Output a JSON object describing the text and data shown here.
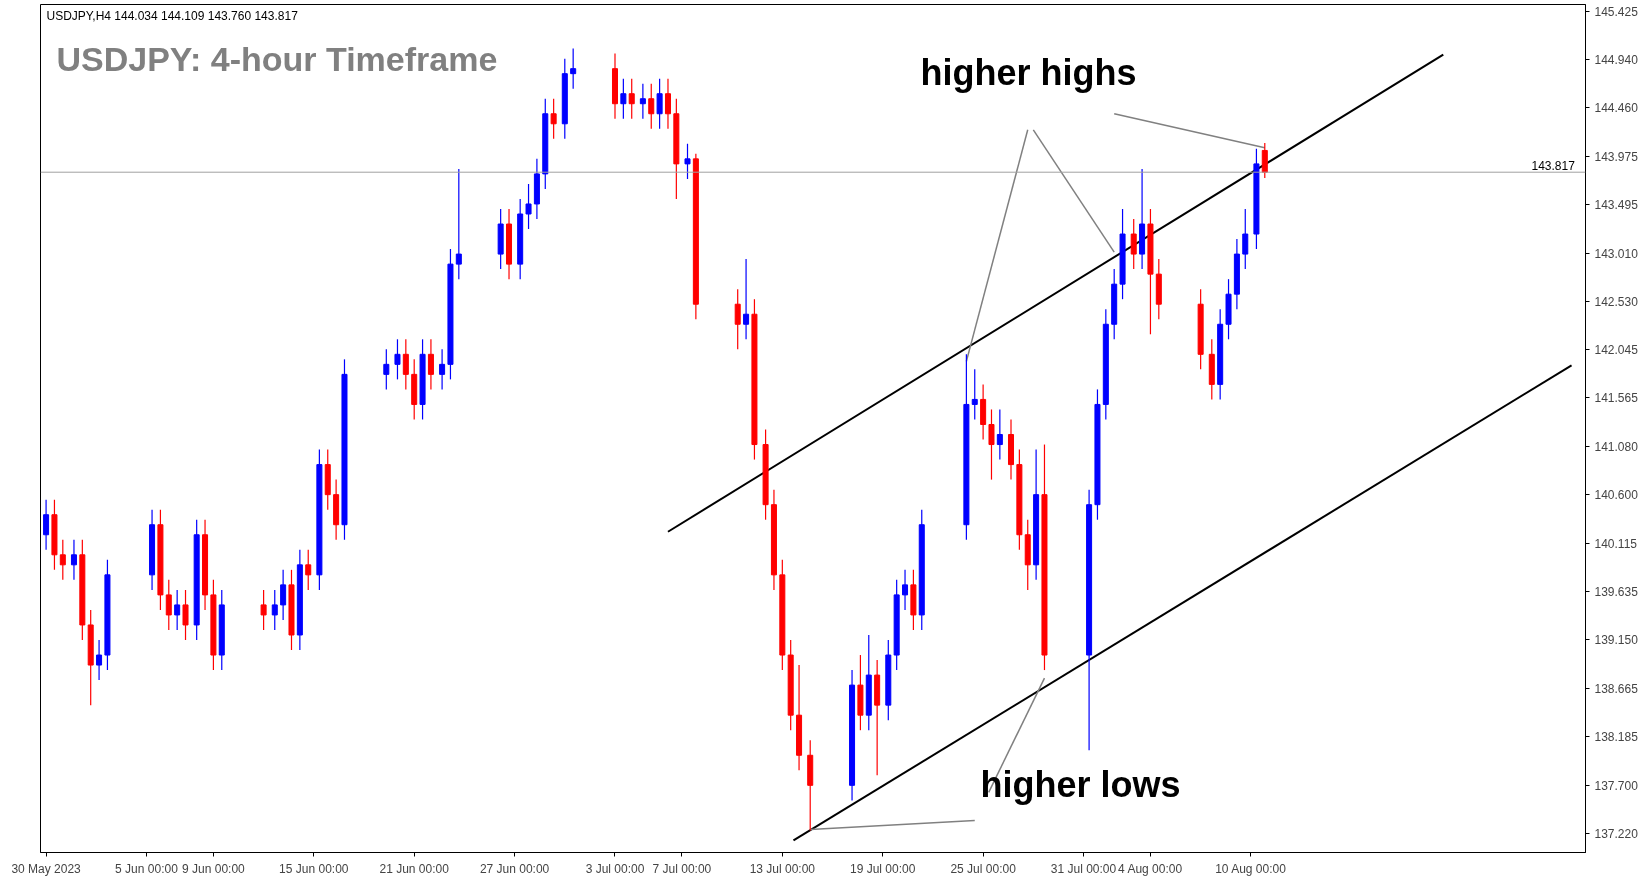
{
  "chart_data": {
    "type": "candlestick",
    "title": "USDJPY: 4-hour Timeframe",
    "annotations": [
      "USDJPY,H4  144.034 144.109 143.760 143.817",
      "higher highs",
      "higher lows"
    ],
    "x": [
      "2023-05-30T00:00",
      "2023-05-30T12:00",
      "2023-05-31T00:00",
      "2023-05-31T16:00",
      "2023-06-01T04:00",
      "2023-06-01T16:00",
      "2023-06-02T04:00",
      "2023-06-02T16:00",
      "2023-06-05T08:00",
      "2023-06-05T20:00",
      "2023-06-06T08:00",
      "2023-06-06T20:00",
      "2023-06-07T08:00",
      "2023-06-08T00:00",
      "2023-06-08T12:00",
      "2023-06-09T00:00",
      "2023-06-09T12:00",
      "2023-06-12T00:00",
      "2023-06-12T16:00",
      "2023-06-13T04:00",
      "2023-06-13T16:00",
      "2023-06-14T04:00",
      "2023-06-14T16:00",
      "2023-06-15T08:00",
      "2023-06-15T20:00",
      "2023-06-16T08:00",
      "2023-06-16T20:00",
      "2023-06-19T08:00",
      "2023-06-20T00:00",
      "2023-06-20T12:00",
      "2023-06-21T00:00",
      "2023-06-21T12:00",
      "2023-06-22T00:00",
      "2023-06-22T16:00",
      "2023-06-23T04:00",
      "2023-06-23T16:00",
      "2023-06-26T04:00",
      "2023-06-26T16:00",
      "2023-06-27T08:00",
      "2023-06-27T20:00",
      "2023-06-28T08:00",
      "2023-06-28T20:00",
      "2023-06-29T08:00",
      "2023-06-30T00:00",
      "2023-06-30T12:00",
      "2023-07-03T00:00",
      "2023-07-03T12:00",
      "2023-07-04T00:00",
      "2023-07-04T16:00",
      "2023-07-05T04:00",
      "2023-07-05T16:00",
      "2023-07-06T04:00",
      "2023-07-06T16:00",
      "2023-07-07T08:00",
      "2023-07-07T20:00",
      "2023-07-10T08:00",
      "2023-07-10T20:00",
      "2023-07-11T08:00",
      "2023-07-12T00:00",
      "2023-07-12T12:00",
      "2023-07-13T00:00",
      "2023-07-13T12:00",
      "2023-07-14T00:00",
      "2023-07-14T16:00",
      "2023-07-17T04:00",
      "2023-07-17T16:00",
      "2023-07-18T04:00",
      "2023-07-18T16:00",
      "2023-07-19T08:00",
      "2023-07-19T20:00",
      "2023-07-20T08:00",
      "2023-07-20T20:00",
      "2023-07-21T08:00",
      "2023-07-24T00:00",
      "2023-07-24T12:00",
      "2023-07-25T00:00",
      "2023-07-25T12:00",
      "2023-07-26T00:00",
      "2023-07-26T16:00",
      "2023-07-27T04:00",
      "2023-07-27T16:00",
      "2023-07-28T04:00",
      "2023-07-28T16:00",
      "2023-07-31T08:00",
      "2023-07-31T20:00",
      "2023-08-01T08:00",
      "2023-08-01T20:00",
      "2023-08-02T08:00",
      "2023-08-03T00:00",
      "2023-08-03T12:00",
      "2023-08-04T00:00",
      "2023-08-04T12:00",
      "2023-08-07T00:00",
      "2023-08-07T16:00",
      "2023-08-08T04:00",
      "2023-08-08T16:00",
      "2023-08-09T04:00",
      "2023-08-09T16:00",
      "2023-08-10T08:00",
      "2023-08-10T20:00"
    ],
    "ohlc": [
      [
        140.2,
        140.55,
        140.05,
        140.4
      ],
      [
        140.4,
        140.55,
        139.85,
        140.0
      ],
      [
        140.0,
        140.15,
        139.75,
        139.9
      ],
      [
        139.9,
        140.15,
        139.75,
        140.0
      ],
      [
        140.0,
        140.15,
        139.15,
        139.3
      ],
      [
        139.3,
        139.45,
        138.5,
        138.9
      ],
      [
        138.9,
        139.15,
        138.75,
        139.0
      ],
      [
        139.0,
        139.95,
        138.85,
        139.8
      ],
      [
        139.8,
        140.45,
        139.65,
        140.3
      ],
      [
        140.3,
        140.45,
        139.45,
        139.6
      ],
      [
        139.6,
        139.75,
        139.25,
        139.4
      ],
      [
        139.4,
        139.65,
        139.25,
        139.5
      ],
      [
        139.5,
        139.65,
        139.15,
        139.3
      ],
      [
        139.3,
        140.35,
        139.15,
        140.2
      ],
      [
        140.2,
        140.35,
        139.45,
        139.6
      ],
      [
        139.6,
        139.75,
        138.85,
        139.0
      ],
      [
        139.0,
        139.65,
        138.85,
        139.5
      ],
      [
        139.5,
        139.65,
        139.25,
        139.4
      ],
      [
        139.4,
        139.65,
        139.25,
        139.5
      ],
      [
        139.5,
        139.85,
        139.35,
        139.7
      ],
      [
        139.7,
        139.85,
        139.05,
        139.2
      ],
      [
        139.2,
        140.05,
        139.05,
        139.9
      ],
      [
        139.9,
        140.05,
        139.65,
        139.8
      ],
      [
        139.8,
        141.05,
        139.65,
        140.9
      ],
      [
        140.9,
        141.05,
        140.45,
        140.6
      ],
      [
        140.6,
        140.75,
        140.15,
        140.3
      ],
      [
        140.3,
        141.95,
        140.15,
        141.8
      ],
      [
        141.8,
        142.05,
        141.65,
        141.9
      ],
      [
        141.9,
        142.15,
        141.75,
        142.0
      ],
      [
        142.0,
        142.15,
        141.65,
        141.8
      ],
      [
        141.8,
        141.95,
        141.35,
        141.5
      ],
      [
        141.5,
        142.15,
        141.35,
        142.0
      ],
      [
        142.0,
        142.15,
        141.65,
        141.8
      ],
      [
        141.8,
        142.05,
        141.65,
        141.9
      ],
      [
        141.9,
        143.05,
        141.75,
        142.9
      ],
      [
        142.9,
        143.85,
        142.75,
        143.0
      ],
      [
        143.0,
        143.45,
        142.85,
        143.3
      ],
      [
        143.3,
        143.45,
        142.75,
        142.9
      ],
      [
        142.9,
        143.55,
        142.75,
        143.4
      ],
      [
        143.4,
        143.7,
        143.25,
        143.5
      ],
      [
        143.5,
        143.95,
        143.35,
        143.8
      ],
      [
        143.8,
        144.55,
        143.65,
        144.4
      ],
      [
        144.4,
        144.55,
        144.15,
        144.3
      ],
      [
        144.3,
        144.95,
        144.15,
        144.8
      ],
      [
        144.8,
        145.05,
        144.65,
        144.85
      ],
      [
        144.85,
        145.0,
        144.35,
        144.5
      ],
      [
        144.5,
        144.75,
        144.35,
        144.6
      ],
      [
        144.6,
        144.75,
        144.35,
        144.5
      ],
      [
        144.5,
        144.7,
        144.35,
        144.55
      ],
      [
        144.55,
        144.7,
        144.25,
        144.4
      ],
      [
        144.4,
        144.75,
        144.25,
        144.6
      ],
      [
        144.6,
        144.75,
        144.25,
        144.4
      ],
      [
        144.4,
        144.55,
        143.55,
        143.9
      ],
      [
        143.9,
        144.1,
        143.75,
        143.95
      ],
      [
        143.95,
        144.0,
        142.35,
        142.5
      ],
      [
        142.5,
        142.65,
        142.05,
        142.3
      ],
      [
        142.3,
        142.95,
        142.15,
        142.4
      ],
      [
        142.4,
        142.55,
        140.95,
        141.1
      ],
      [
        141.1,
        141.25,
        140.35,
        140.5
      ],
      [
        140.5,
        140.65,
        139.65,
        139.8
      ],
      [
        139.8,
        139.95,
        138.85,
        139.0
      ],
      [
        139.0,
        139.15,
        138.25,
        138.4
      ],
      [
        138.4,
        138.9,
        137.85,
        138.0
      ],
      [
        138.0,
        138.15,
        137.25,
        137.7
      ],
      [
        137.7,
        138.85,
        137.55,
        138.7
      ],
      [
        138.7,
        139.0,
        138.25,
        138.4
      ],
      [
        138.4,
        139.2,
        138.25,
        138.8
      ],
      [
        138.8,
        138.95,
        137.8,
        138.5
      ],
      [
        138.5,
        139.15,
        138.35,
        139.0
      ],
      [
        139.0,
        139.75,
        138.85,
        139.6
      ],
      [
        139.6,
        139.85,
        139.45,
        139.7
      ],
      [
        139.7,
        139.85,
        139.25,
        139.4
      ],
      [
        139.4,
        140.45,
        139.25,
        140.3
      ],
      [
        140.3,
        142.0,
        140.15,
        141.5
      ],
      [
        141.5,
        141.85,
        141.35,
        141.55
      ],
      [
        141.55,
        141.7,
        141.15,
        141.3
      ],
      [
        141.3,
        141.45,
        140.75,
        141.1
      ],
      [
        141.1,
        141.45,
        140.95,
        141.2
      ],
      [
        141.2,
        141.35,
        140.75,
        140.9
      ],
      [
        140.9,
        141.05,
        140.05,
        140.2
      ],
      [
        140.2,
        140.35,
        139.65,
        139.9
      ],
      [
        139.9,
        141.05,
        139.75,
        140.6
      ],
      [
        140.6,
        141.1,
        138.85,
        139.0
      ],
      [
        139.0,
        140.65,
        138.05,
        140.5
      ],
      [
        140.5,
        141.65,
        140.35,
        141.5
      ],
      [
        141.5,
        142.45,
        141.35,
        142.3
      ],
      [
        142.3,
        142.85,
        142.15,
        142.7
      ],
      [
        142.7,
        143.45,
        142.55,
        143.2
      ],
      [
        143.2,
        143.35,
        142.85,
        143.0
      ],
      [
        143.0,
        143.85,
        142.85,
        143.3
      ],
      [
        143.3,
        143.45,
        142.2,
        142.8
      ],
      [
        142.8,
        142.95,
        142.35,
        142.5
      ],
      [
        142.5,
        142.65,
        141.85,
        142.0
      ],
      [
        142.0,
        142.15,
        141.55,
        141.7
      ],
      [
        141.7,
        142.45,
        141.55,
        142.3
      ],
      [
        142.3,
        142.75,
        142.15,
        142.6
      ],
      [
        142.6,
        143.15,
        142.45,
        143.0
      ],
      [
        143.0,
        143.45,
        142.85,
        143.2
      ],
      [
        143.2,
        144.05,
        143.05,
        143.9
      ],
      [
        144.034,
        144.109,
        143.76,
        143.817
      ]
    ],
    "colors": [
      "#0000ff",
      "#ff0000",
      "#ff0000",
      "#0000ff",
      "#ff0000",
      "#ff0000",
      "#0000ff",
      "#0000ff",
      "#0000ff",
      "#ff0000",
      "#ff0000",
      "#0000ff",
      "#ff0000",
      "#0000ff",
      "#ff0000",
      "#ff0000",
      "#0000ff",
      "#ff0000",
      "#0000ff",
      "#0000ff",
      "#ff0000",
      "#0000ff",
      "#ff0000",
      "#0000ff",
      "#ff0000",
      "#ff0000",
      "#0000ff",
      "#0000ff",
      "#0000ff",
      "#ff0000",
      "#ff0000",
      "#0000ff",
      "#ff0000",
      "#0000ff",
      "#0000ff",
      "#0000ff",
      "#0000ff",
      "#ff0000",
      "#0000ff",
      "#0000ff",
      "#0000ff",
      "#0000ff",
      "#ff0000",
      "#0000ff",
      "#0000ff",
      "#ff0000",
      "#0000ff",
      "#ff0000",
      "#0000ff",
      "#ff0000",
      "#0000ff",
      "#ff0000",
      "#ff0000",
      "#0000ff",
      "#ff0000",
      "#ff0000",
      "#0000ff",
      "#ff0000",
      "#ff0000",
      "#ff0000",
      "#ff0000",
      "#ff0000",
      "#ff0000",
      "#ff0000",
      "#0000ff",
      "#ff0000",
      "#0000ff",
      "#ff0000",
      "#0000ff",
      "#0000ff",
      "#0000ff",
      "#ff0000",
      "#0000ff",
      "#0000ff",
      "#0000ff",
      "#ff0000",
      "#ff0000",
      "#0000ff",
      "#ff0000",
      "#ff0000",
      "#ff0000",
      "#0000ff",
      "#ff0000",
      "#0000ff",
      "#0000ff",
      "#0000ff",
      "#0000ff",
      "#0000ff",
      "#ff0000",
      "#0000ff",
      "#ff0000",
      "#ff0000",
      "#ff0000",
      "#ff0000",
      "#0000ff",
      "#0000ff",
      "#0000ff",
      "#0000ff",
      "#0000ff",
      "#ff0000"
    ],
    "series": [
      {
        "type": "line",
        "color": "#000000",
        "x": [
          "2023-07-06T04:00",
          "2023-08-21T12:00"
        ],
        "values": [
          140.23,
          144.99
        ]
      },
      {
        "type": "line",
        "color": "#000000",
        "x": [
          "2023-07-13T16:00",
          "2023-08-29T04:00"
        ],
        "values": [
          137.15,
          141.89
        ]
      },
      {
        "type": "line",
        "color": "#808080",
        "x": [
          "2023-07-27T16:00",
          "2023-07-24T00:00"
        ],
        "values": [
          144.24,
          141.93
        ]
      },
      {
        "type": "line",
        "color": "#808080",
        "x": [
          "2023-07-28T00:00",
          "2023-08-01T20:00"
        ],
        "values": [
          144.24,
          143.02
        ]
      },
      {
        "type": "line",
        "color": "#808080",
        "x": [
          "2023-08-01T20:00",
          "2023-08-10T20:00"
        ],
        "values": [
          144.4,
          144.06
        ]
      },
      {
        "type": "line",
        "color": "#808080",
        "x": [
          "2023-07-24T12:00",
          "2023-07-14T16:00"
        ],
        "values": [
          137.35,
          137.26
        ]
      },
      {
        "type": "line",
        "color": "#808080",
        "x": [
          "2023-07-25T08:00",
          "2023-07-28T16:00"
        ],
        "values": [
          137.63,
          138.77
        ]
      }
    ],
    "ref_lines": [
      {
        "axis": "y",
        "value": 143.817,
        "label": "143.817",
        "color": "#a0a0a0"
      }
    ],
    "xlim": [
      "2023-05-29T16:00",
      "2023-08-30T00:00"
    ],
    "ylim": [
      137.03,
      145.49
    ],
    "xticks": [
      {
        "value": "2023-05-30T00:00",
        "label": "30 May 2023"
      },
      {
        "value": "2023-06-05T00:00",
        "label": "5 Jun 00:00"
      },
      {
        "value": "2023-06-09T00:00",
        "label": "9 Jun 00:00"
      },
      {
        "value": "2023-06-15T00:00",
        "label": "15 Jun 00:00"
      },
      {
        "value": "2023-06-21T00:00",
        "label": "21 Jun 00:00"
      },
      {
        "value": "2023-06-27T00:00",
        "label": "27 Jun 00:00"
      },
      {
        "value": "2023-07-03T00:00",
        "label": "3 Jul 00:00"
      },
      {
        "value": "2023-07-07T00:00",
        "label": "7 Jul 00:00"
      },
      {
        "value": "2023-07-13T00:00",
        "label": "13 Jul 00:00"
      },
      {
        "value": "2023-07-19T00:00",
        "label": "19 Jul 00:00"
      },
      {
        "value": "2023-07-25T00:00",
        "label": "25 Jul 00:00"
      },
      {
        "value": "2023-07-31T00:00",
        "label": "31 Jul 00:00"
      },
      {
        "value": "2023-08-04T00:00",
        "label": "4 Aug 00:00"
      },
      {
        "value": "2023-08-10T00:00",
        "label": "10 Aug 00:00"
      }
    ],
    "yticks": [
      {
        "value": 137.22,
        "label": "137.220"
      },
      {
        "value": 137.7,
        "label": "137.700"
      },
      {
        "value": 138.185,
        "label": "138.185"
      },
      {
        "value": 138.665,
        "label": "138.665"
      },
      {
        "value": 139.15,
        "label": "139.150"
      },
      {
        "value": 139.635,
        "label": "139.635"
      },
      {
        "value": 140.115,
        "label": "140.115"
      },
      {
        "value": 140.6,
        "label": "140.600"
      },
      {
        "value": 141.08,
        "label": "141.080"
      },
      {
        "value": 141.565,
        "label": "141.565"
      },
      {
        "value": 142.045,
        "label": "142.045"
      },
      {
        "value": 142.53,
        "label": "142.530"
      },
      {
        "value": 143.01,
        "label": "143.010"
      },
      {
        "value": 143.495,
        "label": "143.495"
      },
      {
        "value": 143.975,
        "label": "143.975"
      },
      {
        "value": 144.46,
        "label": "144.460"
      },
      {
        "value": 144.94,
        "label": "144.940"
      },
      {
        "value": 145.425,
        "label": "145.425"
      }
    ],
    "grid": false
  }
}
